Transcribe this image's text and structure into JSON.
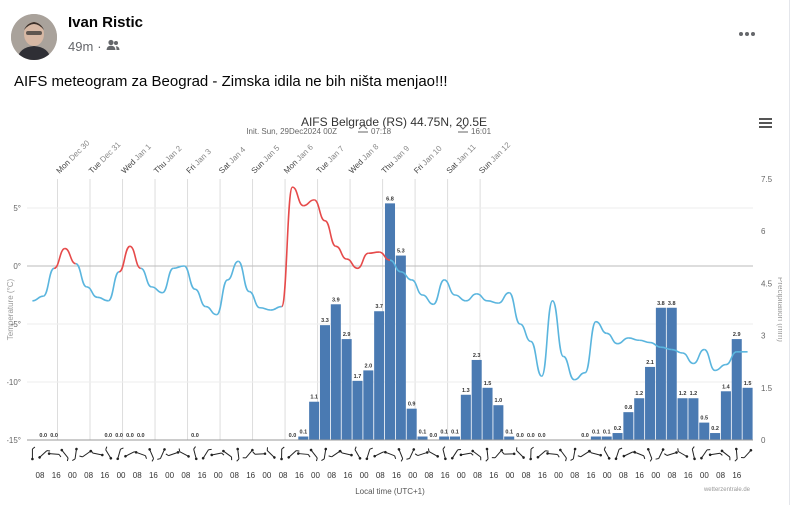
{
  "post": {
    "author": "Ivan Ristic",
    "time": "49m",
    "text": "AIFS meteogram za Beograd - Zimska idila ne bih ništa menjao!!!",
    "audience_icon": "friends-icon",
    "more_icon": "more-options-icon"
  },
  "colors": {
    "bar": "#4a7ab2",
    "temp_warm": "#e64a4a",
    "temp_cold": "#5ab5de",
    "grid": "#dddddd"
  },
  "chart_data": {
    "type": "bar+line",
    "title": "AIFS Belgrade (RS) 44.75N, 20.5E",
    "subtitle": "Init. Sun, 29Dec2024 00Z",
    "sunrise": "07:18",
    "sunset": "16:01",
    "xlabel": "Local time (UTC+1)",
    "watermark": "wetterzentrale.de",
    "menu_icon": "hamburger-menu-icon",
    "y_left": {
      "label": "Temperature (°C)",
      "min": -15,
      "max": 7.5,
      "ticks": [
        "5°",
        "0°",
        "-5°",
        "-10°",
        "-15°"
      ]
    },
    "y_right": {
      "label": "Precipitation (mm)",
      "min": 0,
      "max": 7.5,
      "ticks": [
        "7.5",
        "6",
        "4.5",
        "3",
        "1.5",
        "0"
      ]
    },
    "day_labels": [
      {
        "day": "Mon",
        "date": "Dec 30"
      },
      {
        "day": "Tue",
        "date": "Dec 31"
      },
      {
        "day": "Wed",
        "date": "Jan 1"
      },
      {
        "day": "Thu",
        "date": "Jan 2"
      },
      {
        "day": "Fri",
        "date": "Jan 3"
      },
      {
        "day": "Sat",
        "date": "Jan 4"
      },
      {
        "day": "Sun",
        "date": "Jan 5"
      },
      {
        "day": "Mon",
        "date": "Jan 6"
      },
      {
        "day": "Tue",
        "date": "Jan 7"
      },
      {
        "day": "Wed",
        "date": "Jan 8"
      },
      {
        "day": "Thu",
        "date": "Jan 9"
      },
      {
        "day": "Fri",
        "date": "Jan 10"
      },
      {
        "day": "Sat",
        "date": "Jan 11"
      },
      {
        "day": "Sun",
        "date": "Jan 12"
      }
    ],
    "hour_ticks": [
      "08",
      "16",
      "00",
      "08",
      "16",
      "00",
      "08",
      "16",
      "00",
      "08",
      "16",
      "00",
      "08",
      "16",
      "00",
      "08",
      "16",
      "00",
      "08",
      "16",
      "00",
      "08",
      "16",
      "00",
      "08",
      "16",
      "00",
      "08",
      "16",
      "00",
      "08",
      "16",
      "00",
      "08",
      "16",
      "00",
      "08",
      "16",
      "00",
      "08",
      "16",
      "00",
      "08",
      "16"
    ],
    "precipitation": [
      0,
      0.0,
      0.0,
      0,
      0,
      0,
      0,
      0.0,
      0.0,
      0.0,
      0.0,
      0,
      0,
      0,
      0,
      0.0,
      0,
      0,
      0,
      0,
      0,
      0,
      0,
      0,
      0.0,
      0.1,
      1.1,
      3.3,
      3.9,
      2.9,
      1.7,
      2.0,
      3.7,
      6.8,
      5.3,
      0.9,
      0.1,
      0.0,
      0.1,
      0.1,
      1.3,
      2.3,
      1.5,
      1.0,
      0.1,
      0.0,
      0.0,
      0.0,
      0,
      0,
      0,
      0.0,
      0.1,
      0.1,
      0.2,
      0.8,
      1.2,
      2.1,
      3.8,
      3.8,
      1.2,
      1.2,
      0.5,
      0.2,
      1.4,
      2.9,
      1.5
    ],
    "precip_labels": [
      "",
      "0.0",
      "0.0",
      "",
      "",
      "",
      "",
      "0.0",
      "0.0",
      "0.0",
      "0.0",
      "",
      "",
      "",
      "",
      "0.0",
      "",
      "",
      "",
      "",
      "",
      "",
      "",
      "",
      "0.0",
      "0.1",
      "1.1",
      "3.3",
      "3.9",
      "2.9",
      "1.7",
      "2.0",
      "3.7",
      "6.8",
      "5.3",
      "0.9",
      "0.1",
      "0.0",
      "0.1",
      "0.1",
      "1.3",
      "2.3",
      "1.5",
      "1.0",
      "0.1",
      "0.0",
      "0.0",
      "0.0",
      "",
      "",
      "",
      "0.0",
      "0.1",
      "0.1",
      "0.2",
      "0.8",
      "1.2",
      "2.1",
      "3.8",
      "3.8",
      "1.2",
      "1.2",
      "0.5",
      "0.2",
      "1.4",
      "2.9",
      "1.5"
    ],
    "temperature": [
      -3,
      -2.6,
      -0.2,
      1.5,
      0.2,
      -1.8,
      -2.7,
      -3,
      -0.5,
      1.7,
      -0.2,
      -1.8,
      -2.3,
      -0.2,
      0,
      -2,
      -3.5,
      -4.2,
      -1.2,
      0.4,
      -2.2,
      -3.6,
      -3.8,
      -3.5,
      6.8,
      5.2,
      5.7,
      3.9,
      1.7,
      0.6,
      -0.2,
      1.1,
      1.2,
      0.5,
      -0.5,
      -1.2,
      -2.5,
      -3.3,
      -1.2,
      -2.5,
      -3,
      -2.4,
      -3,
      -3.2,
      -2.3,
      -5,
      -6.5,
      -9.5,
      -3,
      -7.8,
      -9.8,
      -9.2,
      -4.8,
      -5.8,
      -6.7,
      -6.2,
      -6.4,
      -6.6,
      -7,
      -7.2,
      -7.5,
      -8.4,
      -7.2,
      -9,
      -8.5,
      -7.4,
      -7.4
    ]
  }
}
